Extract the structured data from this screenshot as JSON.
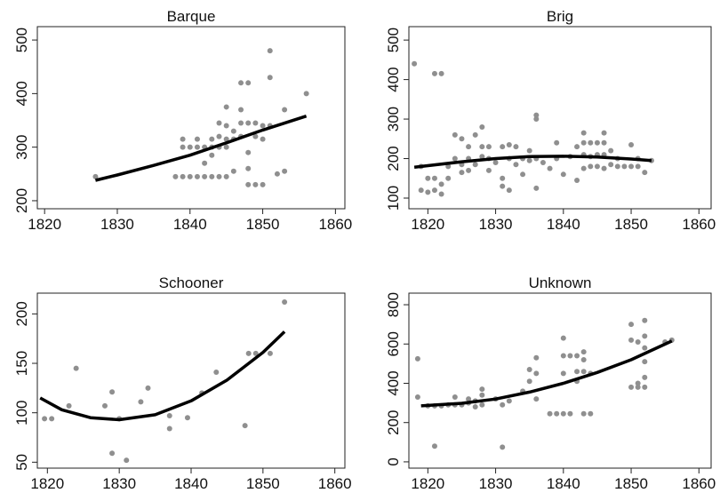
{
  "chart_data": [
    {
      "type": "scatter",
      "title": "Barque",
      "xlim": [
        1819,
        1861.3
      ],
      "ylim": [
        185,
        525
      ],
      "xticks": [
        1820,
        1830,
        1840,
        1850,
        1860
      ],
      "yticks": [
        200,
        300,
        400,
        500
      ],
      "series": [
        {
          "type": "scatter",
          "color": "#8f8f8f",
          "x": [
            1827,
            1838,
            1839,
            1840,
            1841,
            1842,
            1843,
            1844,
            1845,
            1839,
            1839,
            1840,
            1841,
            1841,
            1842,
            1842,
            1843,
            1843,
            1843,
            1844,
            1844,
            1844,
            1845,
            1845,
            1845,
            1845,
            1846,
            1846,
            1846,
            1847,
            1847,
            1847,
            1847,
            1848,
            1848,
            1848,
            1848,
            1848,
            1849,
            1849,
            1849,
            1850,
            1850,
            1850,
            1851,
            1851,
            1851,
            1852,
            1853,
            1853,
            1856
          ],
          "values": [
            245,
            245,
            245,
            245,
            245,
            245,
            245,
            245,
            245,
            315,
            300,
            300,
            300,
            315,
            300,
            270,
            315,
            300,
            285,
            345,
            320,
            300,
            375,
            340,
            315,
            300,
            255,
            315,
            330,
            420,
            370,
            345,
            320,
            420,
            345,
            290,
            260,
            230,
            345,
            320,
            230,
            340,
            315,
            230,
            480,
            430,
            340,
            250,
            370,
            255,
            400
          ]
        },
        {
          "type": "line",
          "color": "#000000",
          "x": [
            1827,
            1830,
            1835,
            1840,
            1845,
            1850,
            1856
          ],
          "values": [
            238,
            248,
            266,
            285,
            308,
            332,
            358
          ]
        }
      ]
    },
    {
      "type": "scatter",
      "title": "Brig",
      "xlim": [
        1817.2,
        1861.8
      ],
      "ylim": [
        73,
        534
      ],
      "xticks": [
        1820,
        1830,
        1840,
        1850,
        1860
      ],
      "yticks": [
        100,
        200,
        300,
        400,
        500
      ],
      "series": [
        {
          "type": "scatter",
          "color": "#8f8f8f",
          "x": [
            1818,
            1821,
            1822,
            1819,
            1820,
            1821,
            1822,
            1819,
            1820,
            1821,
            1822,
            1823,
            1823,
            1824,
            1824,
            1825,
            1825,
            1825,
            1826,
            1826,
            1826,
            1827,
            1827,
            1828,
            1828,
            1828,
            1829,
            1829,
            1829,
            1830,
            1831,
            1831,
            1831,
            1832,
            1832,
            1832,
            1833,
            1833,
            1834,
            1834,
            1835,
            1835,
            1836,
            1836,
            1836,
            1836,
            1837,
            1838,
            1839,
            1839,
            1840,
            1841,
            1842,
            1842,
            1843,
            1843,
            1843,
            1843,
            1844,
            1844,
            1844,
            1845,
            1845,
            1845,
            1846,
            1846,
            1846,
            1846,
            1847,
            1847,
            1848,
            1848,
            1849,
            1850,
            1850,
            1851,
            1851,
            1852,
            1853
          ],
          "values": [
            440,
            415,
            415,
            120,
            115,
            120,
            110,
            180,
            150,
            150,
            135,
            150,
            180,
            200,
            260,
            250,
            185,
            165,
            230,
            200,
            170,
            260,
            185,
            280,
            230,
            205,
            230,
            200,
            170,
            190,
            230,
            150,
            130,
            235,
            200,
            120,
            230,
            185,
            200,
            160,
            220,
            195,
            310,
            300,
            200,
            125,
            190,
            175,
            240,
            200,
            160,
            205,
            145,
            230,
            265,
            240,
            210,
            175,
            240,
            205,
            180,
            240,
            210,
            180,
            265,
            240,
            210,
            175,
            220,
            185,
            200,
            180,
            180,
            180,
            235,
            200,
            180,
            165,
            195
          ]
        },
        {
          "type": "line",
          "color": "#000000",
          "x": [
            1818,
            1825,
            1830,
            1835,
            1840,
            1845,
            1850,
            1853
          ],
          "values": [
            178,
            192,
            200,
            205,
            206,
            204,
            199,
            195
          ]
        }
      ]
    },
    {
      "type": "scatter",
      "title": "Schooner",
      "xlim": [
        1818.6,
        1861.4
      ],
      "ylim": [
        44,
        221
      ],
      "xticks": [
        1820,
        1830,
        1840,
        1850,
        1860
      ],
      "yticks": [
        50,
        100,
        150,
        200
      ],
      "series": [
        {
          "type": "scatter",
          "color": "#8f8f8f",
          "x": [
            1819.6,
            1820.6,
            1823,
            1824,
            1828,
            1829,
            1829,
            1830,
            1831,
            1833,
            1834,
            1837,
            1837,
            1839.5,
            1841.5,
            1843.5,
            1847.5,
            1848,
            1849,
            1851,
            1853
          ],
          "values": [
            94,
            94,
            107,
            145,
            107,
            121,
            59,
            94,
            52,
            111,
            125,
            97,
            84,
            95,
            120,
            141,
            87,
            160,
            160,
            160,
            212
          ]
        },
        {
          "type": "line",
          "color": "#000000",
          "x": [
            1819,
            1822,
            1826,
            1830,
            1835,
            1840,
            1845,
            1850,
            1853
          ],
          "values": [
            115,
            103,
            95,
            93,
            98,
            112,
            133,
            161,
            182
          ]
        }
      ]
    },
    {
      "type": "scatter",
      "title": "Unknown",
      "xlim": [
        1817.2,
        1861.8
      ],
      "ylim": [
        -32,
        859
      ],
      "xticks": [
        1820,
        1830,
        1840,
        1850,
        1860
      ],
      "yticks": [
        0,
        200,
        400,
        600,
        800
      ],
      "series": [
        {
          "type": "scatter",
          "color": "#8f8f8f",
          "x": [
            1818.5,
            1818.5,
            1821,
            1820,
            1821,
            1822,
            1823,
            1824,
            1824,
            1825,
            1826,
            1826,
            1827,
            1827,
            1828,
            1828,
            1828,
            1830,
            1831,
            1831,
            1832,
            1834,
            1835,
            1835,
            1836,
            1836,
            1836,
            1838,
            1839,
            1840,
            1840,
            1840,
            1840,
            1841,
            1841,
            1842,
            1842,
            1842,
            1843,
            1843,
            1843,
            1843,
            1844,
            1844,
            1850,
            1850,
            1850,
            1851,
            1851,
            1851,
            1852,
            1852,
            1852,
            1852,
            1852,
            1852,
            1855,
            1856
          ],
          "values": [
            525,
            330,
            80,
            285,
            285,
            285,
            290,
            290,
            330,
            290,
            300,
            320,
            280,
            310,
            340,
            370,
            290,
            320,
            75,
            290,
            310,
            360,
            470,
            410,
            530,
            450,
            320,
            245,
            245,
            245,
            630,
            540,
            450,
            245,
            540,
            410,
            460,
            540,
            245,
            520,
            560,
            460,
            450,
            245,
            700,
            620,
            380,
            610,
            400,
            380,
            720,
            640,
            580,
            510,
            430,
            380,
            610,
            620
          ]
        },
        {
          "type": "line",
          "color": "#000000",
          "x": [
            1819,
            1825,
            1830,
            1835,
            1840,
            1845,
            1850,
            1856
          ],
          "values": [
            285,
            298,
            320,
            355,
            400,
            455,
            520,
            615
          ]
        }
      ]
    }
  ]
}
